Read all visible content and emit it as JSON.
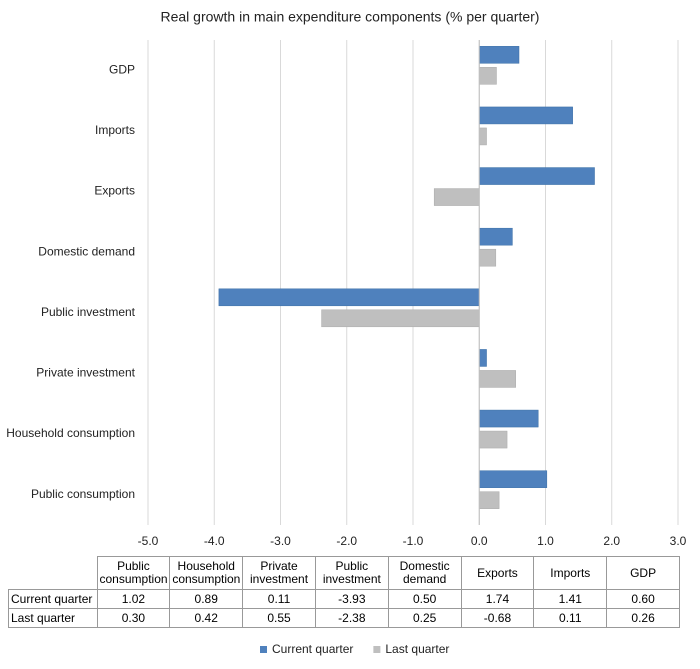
{
  "chart_data": {
    "type": "hbar",
    "title": "Real growth in main expenditure components (% per quarter)",
    "categories": [
      "Public consumption",
      "Household consumption",
      "Private investment",
      "Public investment",
      "Domestic demand",
      "Exports",
      "Imports",
      "GDP"
    ],
    "series": [
      {
        "name": "Current quarter",
        "color": "#4f81bd",
        "values": [
          1.02,
          0.89,
          0.11,
          -3.93,
          0.5,
          1.74,
          1.41,
          0.6
        ],
        "value_labels": [
          "1.02",
          "0.89",
          "0.11",
          "-3.93",
          "0.50",
          "1.74",
          "1.41",
          "0.60"
        ]
      },
      {
        "name": "Last quarter",
        "color": "#bfbfbf",
        "values": [
          0.3,
          0.42,
          0.55,
          -2.38,
          0.25,
          -0.68,
          0.11,
          0.26
        ],
        "value_labels": [
          "0.30",
          "0.42",
          "0.55",
          "-2.38",
          "0.25",
          "-0.68",
          "0.11",
          "0.26"
        ]
      }
    ],
    "xlim": [
      -5,
      3
    ],
    "xticks": [
      {
        "value": -5,
        "label": "-5.0"
      },
      {
        "value": -4,
        "label": "-4.0"
      },
      {
        "value": -3,
        "label": "-3.0"
      },
      {
        "value": -2,
        "label": "-2.0"
      },
      {
        "value": -1,
        "label": "-1.0"
      },
      {
        "value": 0,
        "label": "0.0"
      },
      {
        "value": 1,
        "label": "1.0"
      },
      {
        "value": 2,
        "label": "2.0"
      },
      {
        "value": 3,
        "label": "3.0"
      }
    ],
    "grid": true
  }
}
